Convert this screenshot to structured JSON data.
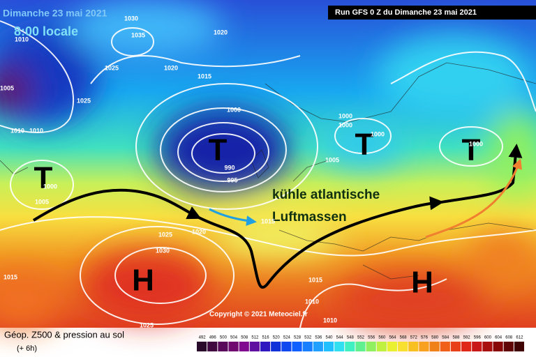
{
  "header": {
    "date": "Dimanche 23 mai 2021",
    "local_time": "8:00 locale",
    "run": "Run GFS 0 Z du Dimanche 23 mai 2021"
  },
  "annotation": [
    "kühle atlantische",
    "Luftmassen"
  ],
  "centers": [
    "T",
    "T",
    "T",
    "T",
    "H",
    "H"
  ],
  "isobar_labels": [
    1030,
    1035,
    1020,
    1010,
    1025,
    1020,
    1015,
    1005,
    1025,
    1000,
    1000,
    1000,
    1000,
    1010,
    1010,
    990,
    995,
    1005,
    1000,
    1000,
    1005,
    1025,
    1020,
    1015,
    1030,
    1015,
    1015,
    1010,
    1010,
    1025
  ],
  "copyright": "Copyright © 2021 Meteociel.fr",
  "footer": {
    "title": "Géop. Z500 & pression au sol",
    "step": "(+ 6h)"
  },
  "scale": [
    492,
    496,
    500,
    504,
    508,
    512,
    516,
    520,
    524,
    528,
    532,
    536,
    540,
    544,
    548,
    552,
    556,
    560,
    564,
    568,
    572,
    576,
    580,
    584,
    588,
    592,
    596,
    600,
    604,
    608,
    612
  ]
}
